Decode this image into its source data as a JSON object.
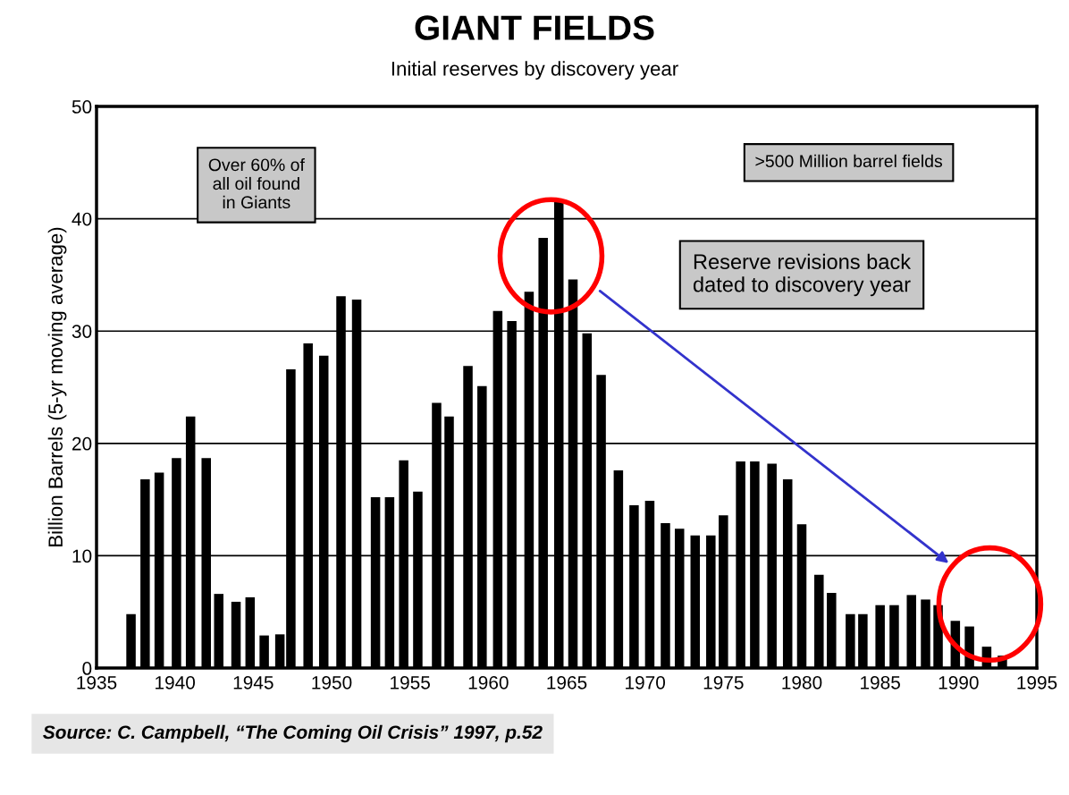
{
  "chart_data": {
    "type": "bar",
    "title": "GIANT FIELDS",
    "subtitle": "Initial reserves by discovery year",
    "ylabel": "Billion Barrels (5-yr moving average)",
    "x": [
      1937.2,
      1938.1,
      1939.0,
      1940.1,
      1941.0,
      1942.0,
      1942.8,
      1943.9,
      1944.8,
      1945.7,
      1946.7,
      1947.4,
      1948.5,
      1949.5,
      1950.6,
      1951.6,
      1952.8,
      1953.7,
      1954.6,
      1955.5,
      1956.7,
      1957.5,
      1958.7,
      1959.6,
      1960.6,
      1961.5,
      1962.6,
      1963.5,
      1964.5,
      1965.4,
      1966.3,
      1967.2,
      1968.3,
      1969.3,
      1970.3,
      1971.3,
      1972.2,
      1973.2,
      1974.2,
      1975.0,
      1976.1,
      1977.0,
      1978.1,
      1979.1,
      1980.0,
      1981.1,
      1981.9,
      1983.1,
      1983.9,
      1985.0,
      1985.9,
      1987.0,
      1987.9,
      1988.7,
      1989.8,
      1990.7,
      1991.8,
      1992.8
    ],
    "values": [
      4.8,
      16.8,
      17.4,
      18.7,
      22.4,
      18.7,
      6.6,
      5.9,
      6.3,
      2.9,
      3.0,
      26.6,
      28.9,
      27.8,
      33.1,
      32.8,
      15.2,
      15.2,
      18.5,
      15.7,
      23.6,
      22.4,
      26.9,
      25.1,
      31.8,
      30.9,
      33.5,
      38.3,
      41.7,
      34.6,
      29.8,
      26.1,
      17.6,
      14.5,
      14.9,
      12.9,
      12.4,
      11.8,
      11.8,
      13.6,
      18.4,
      18.4,
      18.2,
      16.8,
      12.8,
      8.3,
      6.7,
      4.8,
      4.8,
      5.6,
      5.6,
      6.5,
      6.1,
      5.6,
      4.2,
      3.7,
      1.9,
      1.1
    ],
    "color": "#000000",
    "xlim": [
      1935,
      1995
    ],
    "xticks": [
      1935,
      1940,
      1945,
      1950,
      1955,
      1960,
      1965,
      1970,
      1975,
      1980,
      1985,
      1990,
      1995
    ],
    "ylim": [
      0,
      50
    ],
    "yticks": [
      0,
      10,
      20,
      30,
      40,
      50
    ],
    "grid": "y",
    "annotations": [
      "Over 60% of\nall oil found\nin Giants",
      ">500 Million barrel fields",
      "Reserve revisions back\ndated to discovery year",
      "Source: C. Campbell, “The Coming Oil Crisis” 1997, p.52"
    ]
  }
}
